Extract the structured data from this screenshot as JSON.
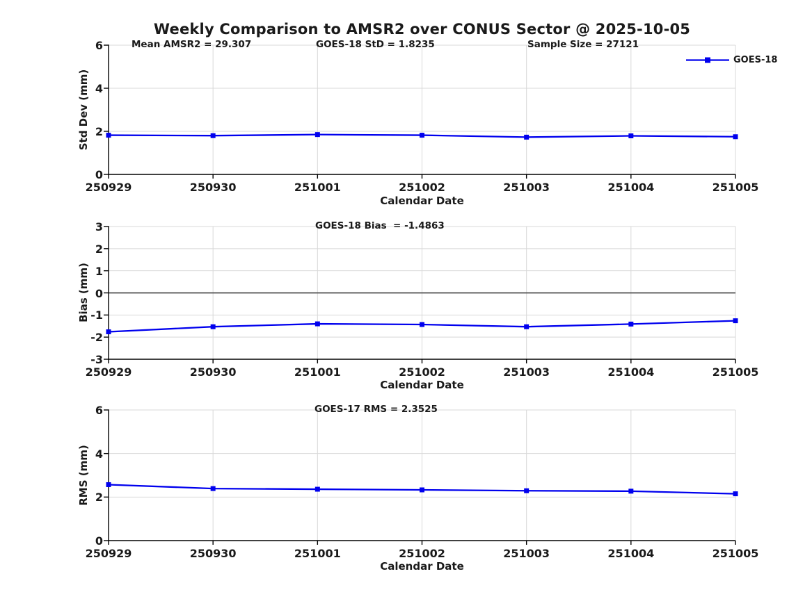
{
  "figure": {
    "title": "Weekly Comparison to AMSR2 over CONUS Sector @ 2025-10-05",
    "background_color": "#ffffff",
    "text_color": "#1a1a1a",
    "line_color": "#0000ee",
    "grid_color": "#d8d8d8",
    "spine_color": "#000000",
    "zero_line_color": "#4d4d4d"
  },
  "chart_data": [
    {
      "type": "line",
      "ylabel": "Std Dev (mm)",
      "xlabel": "Calendar Date",
      "annotations": [
        "Mean AMSR2 = 29.307",
        "GOES-18 StD = 1.8235",
        "Sample Size = 27121"
      ],
      "categories": [
        "250929",
        "250930",
        "251001",
        "251002",
        "251003",
        "251004",
        "251005"
      ],
      "series": [
        {
          "name": "GOES-18",
          "values": [
            1.82,
            1.8,
            1.85,
            1.82,
            1.73,
            1.79,
            1.75
          ]
        }
      ],
      "ylim": [
        0,
        6
      ],
      "yticks": [
        0,
        2,
        4,
        6
      ],
      "grid": true,
      "marker": "square",
      "legend": {
        "label": "GOES-18",
        "position": "top-right"
      }
    },
    {
      "type": "line",
      "ylabel": "Bias (mm)",
      "xlabel": "Calendar Date",
      "annotations": [
        "GOES-18 Bias  = -1.4863"
      ],
      "categories": [
        "250929",
        "250930",
        "251001",
        "251002",
        "251003",
        "251004",
        "251005"
      ],
      "series": [
        {
          "name": "GOES-18",
          "values": [
            -1.76,
            -1.53,
            -1.4,
            -1.43,
            -1.53,
            -1.41,
            -1.26
          ]
        }
      ],
      "ylim": [
        -3,
        3
      ],
      "yticks": [
        -3,
        -2,
        -1,
        0,
        1,
        2,
        3
      ],
      "grid": true,
      "marker": "square",
      "zero_line": true
    },
    {
      "type": "line",
      "ylabel": "RMS (mm)",
      "xlabel": "Calendar Date",
      "annotations": [
        "GOES-17 RMS = 2.3525"
      ],
      "categories": [
        "250929",
        "250930",
        "251001",
        "251002",
        "251003",
        "251004",
        "251005"
      ],
      "series": [
        {
          "name": "GOES-18",
          "values": [
            2.57,
            2.39,
            2.36,
            2.33,
            2.29,
            2.27,
            2.15
          ]
        }
      ],
      "ylim": [
        0,
        6
      ],
      "yticks": [
        0,
        2,
        4,
        6
      ],
      "grid": true,
      "marker": "square"
    }
  ]
}
